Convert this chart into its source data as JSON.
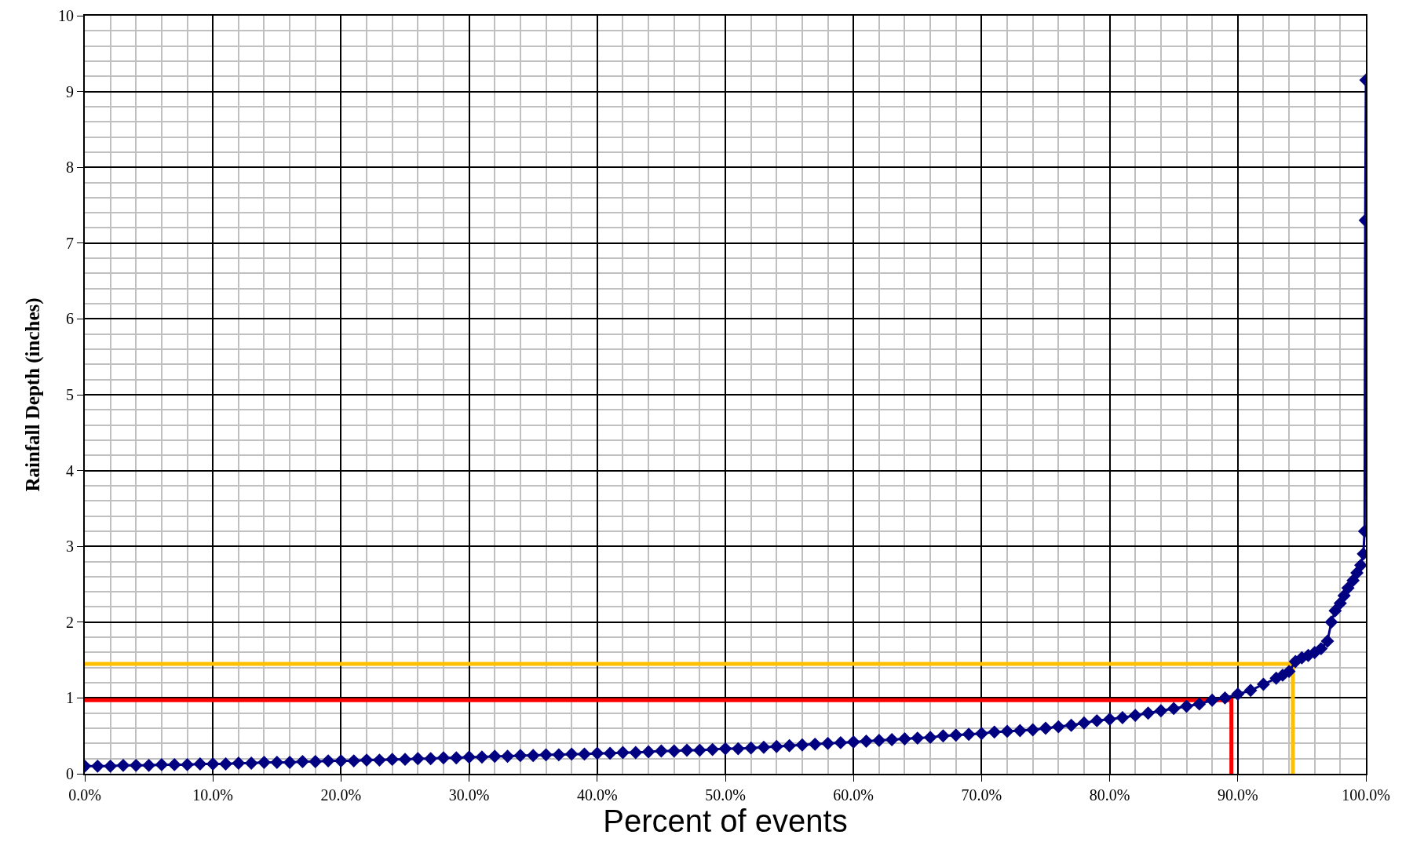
{
  "chart_data": {
    "type": "line",
    "xlabel": "Percent of events",
    "ylabel": "Rainfall Depth (inches)",
    "xlim": [
      0,
      100
    ],
    "ylim": [
      0,
      10
    ],
    "xticks": [
      {
        "value": 0,
        "label": "0.0%"
      },
      {
        "value": 10,
        "label": "10.0%"
      },
      {
        "value": 20,
        "label": "20.0%"
      },
      {
        "value": 30,
        "label": "30.0%"
      },
      {
        "value": 40,
        "label": "40.0%"
      },
      {
        "value": 50,
        "label": "50.0%"
      },
      {
        "value": 60,
        "label": "60.0%"
      },
      {
        "value": 70,
        "label": "70.0%"
      },
      {
        "value": 80,
        "label": "80.0%"
      },
      {
        "value": 90,
        "label": "90.0%"
      },
      {
        "value": 100,
        "label": "100.0%"
      }
    ],
    "yticks": [
      0,
      1,
      2,
      3,
      4,
      5,
      6,
      7,
      8,
      9,
      10
    ],
    "grid": true,
    "series": [
      {
        "color": "#000080",
        "marker": "diamond",
        "x": [
          0,
          1,
          2,
          3,
          4,
          5,
          6,
          7,
          8,
          9,
          10,
          11,
          12,
          13,
          14,
          15,
          16,
          17,
          18,
          19,
          20,
          21,
          22,
          23,
          24,
          25,
          26,
          27,
          28,
          29,
          30,
          31,
          32,
          33,
          34,
          35,
          36,
          37,
          38,
          39,
          40,
          41,
          42,
          43,
          44,
          45,
          46,
          47,
          48,
          49,
          50,
          51,
          52,
          53,
          54,
          55,
          56,
          57,
          58,
          59,
          60,
          61,
          62,
          63,
          64,
          65,
          66,
          67,
          68,
          69,
          70,
          71,
          72,
          73,
          74,
          75,
          76,
          77,
          78,
          79,
          80,
          81,
          82,
          83,
          84,
          85,
          86,
          87,
          88,
          89,
          90,
          91,
          92,
          93,
          93.5,
          94,
          94.5,
          95,
          95.5,
          96,
          96.5,
          97,
          97.3,
          97.6,
          98,
          98.3,
          98.6,
          99,
          99.3,
          99.6,
          99.8,
          99.9,
          99.95,
          100
        ],
        "values": [
          0.1,
          0.1,
          0.1,
          0.11,
          0.11,
          0.11,
          0.12,
          0.12,
          0.12,
          0.13,
          0.13,
          0.13,
          0.14,
          0.14,
          0.15,
          0.15,
          0.15,
          0.16,
          0.16,
          0.17,
          0.17,
          0.17,
          0.18,
          0.18,
          0.19,
          0.19,
          0.2,
          0.2,
          0.21,
          0.21,
          0.22,
          0.22,
          0.23,
          0.23,
          0.24,
          0.24,
          0.25,
          0.25,
          0.26,
          0.26,
          0.27,
          0.27,
          0.28,
          0.28,
          0.29,
          0.3,
          0.3,
          0.31,
          0.31,
          0.32,
          0.33,
          0.33,
          0.34,
          0.35,
          0.36,
          0.37,
          0.38,
          0.39,
          0.4,
          0.41,
          0.42,
          0.43,
          0.44,
          0.45,
          0.46,
          0.47,
          0.48,
          0.5,
          0.51,
          0.52,
          0.53,
          0.55,
          0.56,
          0.57,
          0.58,
          0.6,
          0.62,
          0.64,
          0.67,
          0.7,
          0.72,
          0.74,
          0.77,
          0.8,
          0.83,
          0.86,
          0.89,
          0.92,
          0.97,
          1.0,
          1.05,
          1.1,
          1.18,
          1.26,
          1.3,
          1.35,
          1.48,
          1.53,
          1.56,
          1.6,
          1.65,
          1.75,
          2.0,
          2.15,
          2.25,
          2.35,
          2.45,
          2.55,
          2.65,
          2.75,
          2.9,
          3.2,
          7.3,
          9.15
        ]
      },
      {
        "color": "#ff0000",
        "marker": "none",
        "x": [
          0,
          89.5,
          89.5
        ],
        "values": [
          0.97,
          0.97,
          0
        ]
      },
      {
        "color": "#ffc000",
        "marker": "none",
        "x": [
          0,
          94.3,
          94.3
        ],
        "values": [
          1.45,
          1.45,
          0
        ]
      }
    ]
  }
}
